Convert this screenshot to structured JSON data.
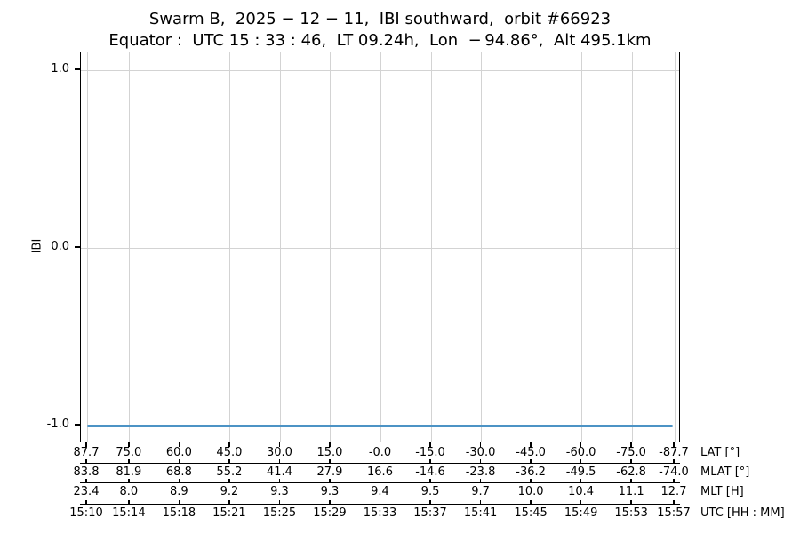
{
  "chart_data": {
    "type": "line",
    "title": "Swarm B,  2025 − 12 − 11,  IBI southward,  orbit #66923",
    "subtitle": "Equator :  UTC 15 : 33 : 46,  LT 09.24h,  Lon  − 94.86°,  Alt 495.1km",
    "ylabel": "IBI",
    "ylim": [
      -1.1,
      1.1
    ],
    "yticks": [
      1.0,
      0.0,
      -1.0
    ],
    "ytick_labels": [
      "1.0",
      "0.0",
      "-1.0"
    ],
    "grid": true,
    "grid_color": "#d3d3d3",
    "axis_color": "#000000",
    "series": [
      {
        "name": "IBI",
        "color": "#4c93c5",
        "y_constant": -1.0,
        "x_start": "15:10",
        "x_end": "15:57"
      }
    ],
    "x_axis_rows": [
      {
        "label": "LAT [°]",
        "ticks": [
          "87.7",
          "75.0",
          "60.0",
          "45.0",
          "30.0",
          "15.0",
          "-0.0",
          "-15.0",
          "-30.0",
          "-45.0",
          "-60.0",
          "-75.0",
          "-87.7"
        ]
      },
      {
        "label": "MLAT [°]",
        "ticks": [
          "83.8",
          "81.9",
          "68.8",
          "55.2",
          "41.4",
          "27.9",
          "16.6",
          "-14.6",
          "-23.8",
          "-36.2",
          "-49.5",
          "-62.8",
          "-74.0"
        ]
      },
      {
        "label": "MLT [H]",
        "ticks": [
          "23.4",
          "8.0",
          "8.9",
          "9.2",
          "9.3",
          "9.3",
          "9.4",
          "9.5",
          "9.7",
          "10.0",
          "10.4",
          "11.1",
          "12.7"
        ]
      },
      {
        "label": "UTC [HH : MM]",
        "ticks": [
          "15:10",
          "15:14",
          "15:18",
          "15:21",
          "15:25",
          "15:29",
          "15:33",
          "15:37",
          "15:41",
          "15:45",
          "15:49",
          "15:53",
          "15:57"
        ]
      }
    ]
  }
}
